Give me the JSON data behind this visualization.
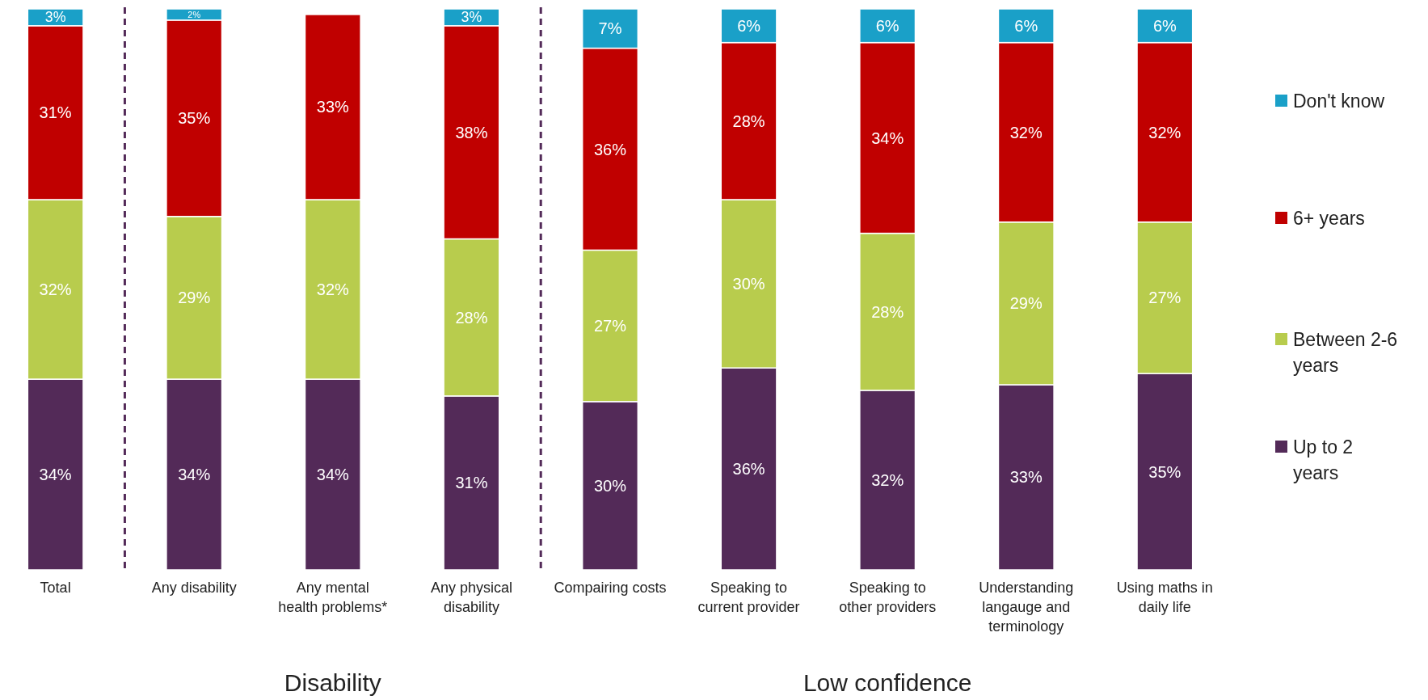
{
  "chart_data": {
    "type": "bar",
    "stacked": true,
    "legend": "right",
    "data_labels": true,
    "categories": [
      "Total",
      "Any disability",
      "Any mental health problems*",
      "Any physical disability",
      "Compairing costs",
      "Speaking to current provider",
      "Speaking to other providers",
      "Understanding langauge and terminology",
      "Using maths in daily life"
    ],
    "series": [
      {
        "name": "Up to 2 years",
        "color": "#532a58",
        "values": [
          34,
          34,
          34,
          31,
          30,
          36,
          32,
          33,
          35
        ],
        "value_labels": [
          "34%",
          "34%",
          "34%",
          "31%",
          "30%",
          "36%",
          "32%",
          "33%",
          "35%"
        ]
      },
      {
        "name": "Between 2-6 years",
        "color": "#b8cc4d",
        "values": [
          32,
          29,
          32,
          28,
          27,
          30,
          28,
          29,
          27
        ],
        "value_labels": [
          "32%",
          "29%",
          "32%",
          "28%",
          "27%",
          "30%",
          "28%",
          "29%",
          "27%"
        ]
      },
      {
        "name": "6+ years",
        "color": "#c00000",
        "values": [
          31,
          35,
          33,
          38,
          36,
          28,
          34,
          32,
          32
        ],
        "value_labels": [
          "31%",
          "35%",
          "33%",
          "38%",
          "36%",
          "28%",
          "34%",
          "32%",
          "32%"
        ]
      },
      {
        "name": "Don't know",
        "color": "#1aa0c8",
        "values": [
          3,
          2,
          null,
          3,
          7,
          6,
          6,
          6,
          6
        ],
        "value_labels": [
          "3%",
          "2%",
          null,
          "3%",
          "7%",
          "6%",
          "6%",
          "6%",
          "6%"
        ]
      }
    ],
    "annotations": [
      "Disability",
      "Low confidence"
    ]
  }
}
